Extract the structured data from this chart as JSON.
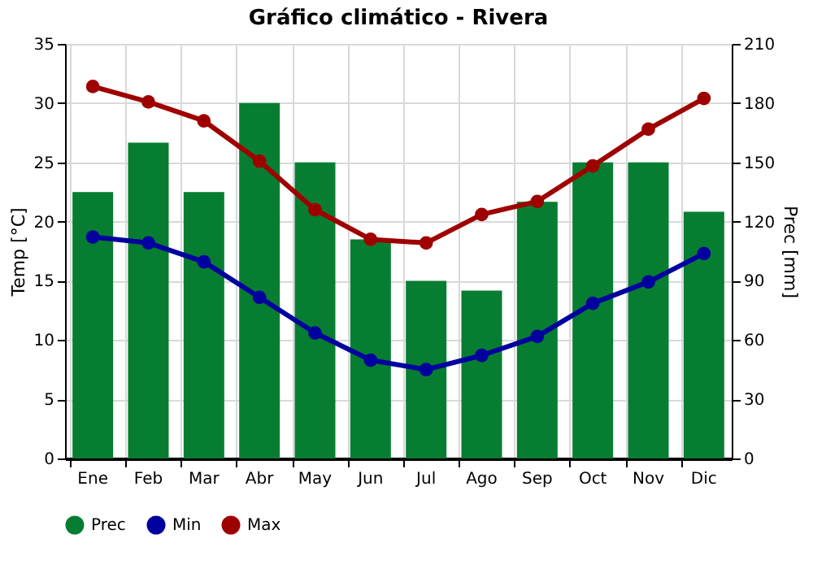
{
  "chart_data": {
    "type": "bar",
    "title": "Gráfico climático - Rivera",
    "ylabel": "Temp [°C]",
    "y2label": "Prec [mm]",
    "categories": [
      "Ene",
      "Feb",
      "Mar",
      "Abr",
      "May",
      "Jun",
      "Jul",
      "Ago",
      "Sep",
      "Oct",
      "Nov",
      "Dic"
    ],
    "series": [
      {
        "name": "Prec",
        "axis": "y2",
        "color": "#077d32",
        "values": [
          135,
          160,
          135,
          180,
          150,
          111,
          90,
          85,
          130,
          150,
          150,
          125
        ]
      },
      {
        "name": "Min",
        "type": "line",
        "color": "#00009e",
        "values": [
          18.7,
          18.2,
          16.6,
          13.6,
          10.6,
          8.3,
          7.5,
          8.7,
          10.3,
          13.1,
          14.9,
          17.3
        ]
      },
      {
        "name": "Max",
        "type": "line",
        "color": "#9e0000",
        "values": [
          31.4,
          30.1,
          28.5,
          25.1,
          21.0,
          18.5,
          18.2,
          20.6,
          21.7,
          24.7,
          27.8,
          30.4
        ]
      }
    ],
    "ylim": [
      0,
      35
    ],
    "yticks": [
      0,
      5,
      10,
      15,
      20,
      25,
      30,
      35
    ],
    "y2lim": [
      0,
      210
    ],
    "y2ticks": [
      0,
      30,
      60,
      90,
      120,
      150,
      180,
      210
    ],
    "grid": true,
    "legend": "bottom",
    "marker": "circle"
  }
}
